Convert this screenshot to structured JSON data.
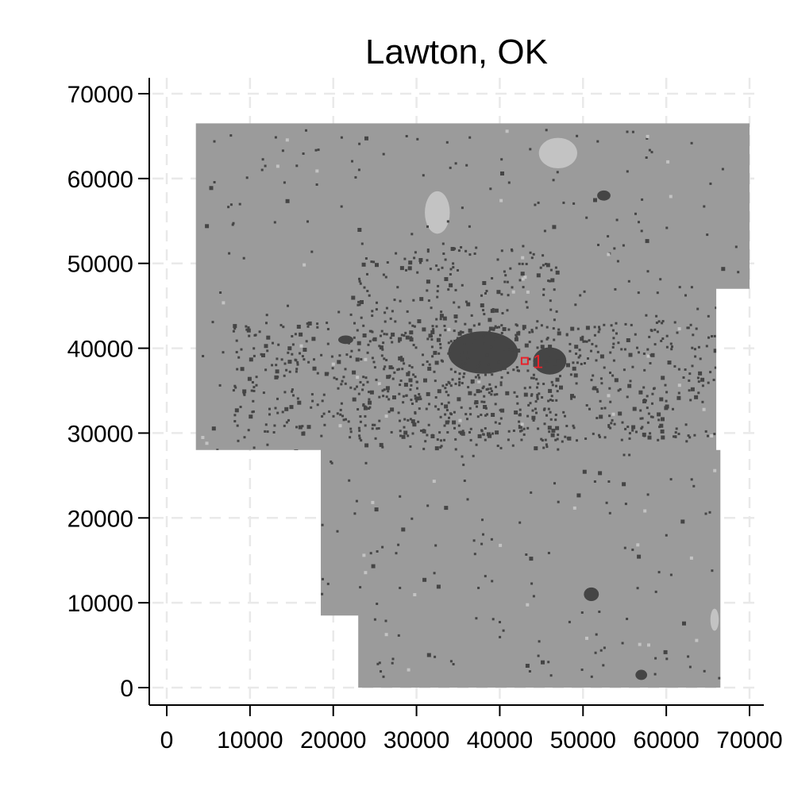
{
  "title": "Lawton, OK",
  "chart_data": {
    "type": "map",
    "title": "Lawton, OK",
    "xlabel": "",
    "ylabel": "",
    "xlim": [
      -2000,
      72000
    ],
    "ylim": [
      -2000,
      72000
    ],
    "x_ticks": [
      {
        "value": 0,
        "label": "0"
      },
      {
        "value": 10000,
        "label": "10000"
      },
      {
        "value": 20000,
        "label": "20000"
      },
      {
        "value": 30000,
        "label": "30000"
      },
      {
        "value": 40000,
        "label": "40000"
      },
      {
        "value": 50000,
        "label": "50000"
      },
      {
        "value": 60000,
        "label": "60000"
      },
      {
        "value": 70000,
        "label": "70000"
      }
    ],
    "y_ticks": [
      {
        "value": 0,
        "label": "0"
      },
      {
        "value": 10000,
        "label": "10000"
      },
      {
        "value": 20000,
        "label": "20000"
      },
      {
        "value": 30000,
        "label": "30000"
      },
      {
        "value": 40000,
        "label": "40000"
      },
      {
        "value": 50000,
        "label": "50000"
      },
      {
        "value": 60000,
        "label": "60000"
      },
      {
        "value": 70000,
        "label": "70000"
      }
    ],
    "grid": true,
    "legend": "none",
    "colors": {
      "base": "#9b9b9b",
      "developed": "#454545",
      "water": "#c3c3c3",
      "marker": "#e8222a"
    },
    "region_outline": [
      [
        3500,
        66500
      ],
      [
        70000,
        66500
      ],
      [
        70000,
        47000
      ],
      [
        66000,
        47000
      ],
      [
        66000,
        28000
      ],
      [
        66500,
        28000
      ],
      [
        66500,
        0
      ],
      [
        23000,
        0
      ],
      [
        23000,
        8500
      ],
      [
        18500,
        8500
      ],
      [
        18500,
        28000
      ],
      [
        3500,
        28000
      ]
    ],
    "developed_clusters": [
      {
        "x": 38000,
        "y": 39500,
        "rx": 4200,
        "ry": 2500
      },
      {
        "x": 46000,
        "y": 38500,
        "rx": 2000,
        "ry": 1600
      },
      {
        "x": 51000,
        "y": 11000,
        "rx": 900,
        "ry": 800
      },
      {
        "x": 57000,
        "y": 1500,
        "rx": 700,
        "ry": 600
      },
      {
        "x": 52500,
        "y": 58000,
        "rx": 800,
        "ry": 600
      },
      {
        "x": 21500,
        "y": 41000,
        "rx": 900,
        "ry": 500
      }
    ],
    "water_bodies": [
      {
        "x": 32500,
        "y": 56000,
        "rx": 1500,
        "ry": 2500
      },
      {
        "x": 47000,
        "y": 63000,
        "rx": 2300,
        "ry": 1800
      },
      {
        "x": 65800,
        "y": 8000,
        "rx": 500,
        "ry": 1300
      }
    ],
    "markers": [
      {
        "x": 43000,
        "y": 38500,
        "label": "1"
      }
    ]
  }
}
